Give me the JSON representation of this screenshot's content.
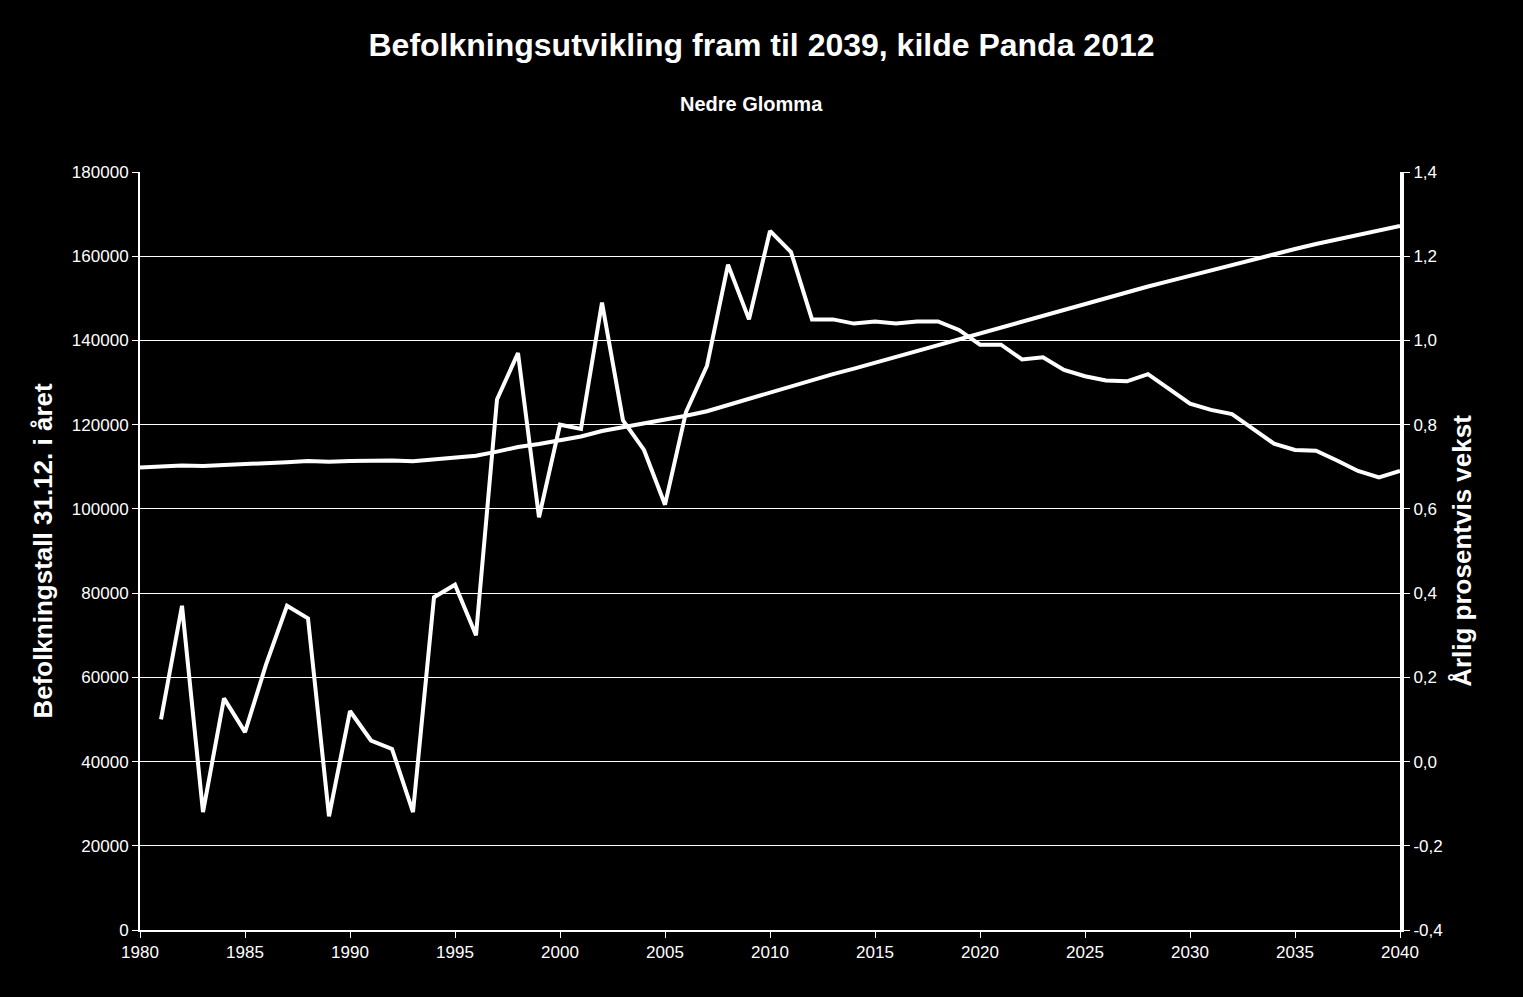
{
  "chart_data": {
    "type": "line",
    "title": "Befolkningsutvikling fram til 2039, kilde Panda 2012",
    "subtitle": "Nedre Glomma",
    "y_label": "Befolkningstall 31.12. i året",
    "y2_label": "Årlig prosentvis vekst",
    "color": "#ffffff",
    "grid": true,
    "x": [
      1980,
      1981,
      1982,
      1983,
      1984,
      1985,
      1986,
      1987,
      1988,
      1989,
      1990,
      1991,
      1992,
      1993,
      1994,
      1995,
      1996,
      1997,
      1998,
      1999,
      2000,
      2001,
      2002,
      2003,
      2004,
      2005,
      2006,
      2007,
      2008,
      2009,
      2010,
      2011,
      2012,
      2013,
      2014,
      2015,
      2016,
      2017,
      2018,
      2019,
      2020,
      2021,
      2022,
      2023,
      2024,
      2025,
      2026,
      2027,
      2028,
      2029,
      2030,
      2031,
      2032,
      2033,
      2034,
      2035,
      2036,
      2037,
      2038,
      2039,
      2040
    ],
    "series": [
      {
        "color": "#ffffff",
        "values": [
          109800,
          110000,
          110300,
          110200,
          110400,
          110500,
          110700,
          111100,
          111400,
          111200,
          111400,
          111500,
          111500,
          111300,
          111800,
          112300,
          112600,
          113600,
          114700,
          115400,
          116300,
          117200,
          118500,
          119400,
          120300,
          121100,
          122100,
          123200,
          124700,
          126000,
          127600,
          129200,
          130600,
          132000,
          133300,
          134700,
          136100,
          137500,
          138900,
          140400,
          141800,
          143200,
          144600,
          146000,
          147300,
          148700,
          150000,
          151400,
          152800,
          154100,
          155400,
          156700,
          158000,
          159300,
          160500,
          161700,
          162900,
          164000,
          165100,
          166200,
          167200
        ]
      },
      {
        "color": "#ffffff",
        "axis": "y2",
        "values": [
          null,
          0.1,
          0.37,
          -0.12,
          0.15,
          0.07,
          0.23,
          0.37,
          0.34,
          -0.13,
          0.12,
          0.05,
          0.03,
          -0.12,
          0.39,
          0.42,
          0.3,
          0.86,
          0.97,
          0.58,
          0.8,
          0.79,
          1.09,
          0.81,
          0.74,
          0.61,
          0.83,
          0.94,
          1.18,
          1.05,
          1.26,
          1.21,
          1.05,
          1.05,
          1.04,
          1.045,
          1.04,
          1.045,
          1.045,
          1.025,
          0.99,
          0.99,
          0.955,
          0.96,
          0.93,
          0.915,
          0.905,
          0.903,
          0.92,
          0.885,
          0.85,
          0.835,
          0.825,
          0.79,
          0.755,
          0.74,
          0.738,
          0.715,
          0.69,
          0.675,
          0.69
        ]
      }
    ],
    "xlim": [
      1980,
      2040
    ],
    "xticks": [
      1980,
      1985,
      1990,
      1995,
      2000,
      2005,
      2010,
      2015,
      2020,
      2025,
      2030,
      2035,
      2040
    ],
    "ylim": [
      0,
      180000
    ],
    "yticks": [
      0,
      20000,
      40000,
      60000,
      80000,
      100000,
      120000,
      140000,
      160000,
      180000
    ],
    "y2lim": [
      -0.4,
      1.4
    ],
    "y2ticks": [
      {
        "value": -0.4,
        "label": "-0,4"
      },
      {
        "value": -0.2,
        "label": "-0,2"
      },
      {
        "value": 0,
        "label": "0,0"
      },
      {
        "value": 0.2,
        "label": "0,2"
      },
      {
        "value": 0.4,
        "label": "0,4"
      },
      {
        "value": 0.6,
        "label": "0,6"
      },
      {
        "value": 0.8,
        "label": "0,8"
      },
      {
        "value": 1.0,
        "label": "1,0"
      },
      {
        "value": 1.2,
        "label": "1,2"
      },
      {
        "value": 1.4,
        "label": "1,4"
      }
    ]
  }
}
